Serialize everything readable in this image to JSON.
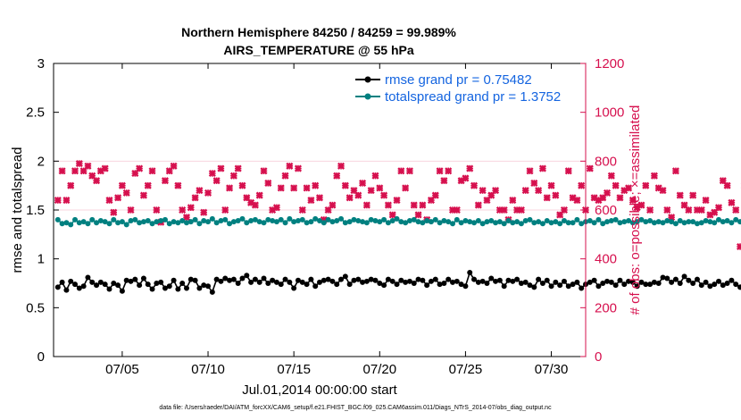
{
  "chart_data": {
    "type": "line",
    "title_line1": "Northern Hemisphere 84250 / 84259 = 99.989%",
    "title_line2": "AIRS_TEMPERATURE @ 55 hPa",
    "xlabel": "Jul.01,2014 00:00:00 start",
    "ylabel_left": "rmse and totalspread",
    "ylabel_right": "# of obs: o=possible; ×=assimilated",
    "xlim": [
      1.0,
      32.0
    ],
    "ylim_left": [
      0,
      3
    ],
    "ylim_right": [
      0,
      1200
    ],
    "x_ticks": [
      5,
      10,
      15,
      20,
      25,
      30
    ],
    "x_tick_labels": [
      "07/05",
      "07/10",
      "07/15",
      "07/20",
      "07/25",
      "07/30"
    ],
    "y_left_ticks": [
      0,
      0.5,
      1,
      1.5,
      2,
      2.5,
      3
    ],
    "y_left_tick_labels": [
      "0",
      "0.5",
      "1",
      "1.5",
      "2",
      "2.5",
      "3"
    ],
    "y_right_ticks": [
      0,
      200,
      400,
      600,
      800,
      1000,
      1200
    ],
    "y_right_tick_labels": [
      "0",
      "200",
      "400",
      "600",
      "800",
      "1000",
      "1200"
    ],
    "colors": {
      "rmse": "#000000",
      "spread": "#008080",
      "obs": "#d6104e",
      "axis_right": "#d6104e"
    },
    "legend": [
      {
        "name": "rmse grand pr = 0.75482",
        "color": "#000000"
      },
      {
        "name": "totalspread grand pr = 1.3752",
        "color": "#008080"
      }
    ],
    "x_start": 1.25,
    "x_step": 0.25,
    "series": [
      {
        "name": "rmse",
        "axis": "left",
        "values": [
          0.71,
          0.76,
          0.68,
          0.77,
          0.74,
          0.7,
          0.72,
          0.81,
          0.76,
          0.73,
          0.76,
          0.74,
          0.69,
          0.75,
          0.73,
          0.67,
          0.78,
          0.77,
          0.79,
          0.73,
          0.8,
          0.74,
          0.69,
          0.75,
          0.76,
          0.7,
          0.72,
          0.78,
          0.69,
          0.75,
          0.7,
          0.79,
          0.78,
          0.7,
          0.73,
          0.72,
          0.66,
          0.79,
          0.77,
          0.8,
          0.78,
          0.79,
          0.75,
          0.8,
          0.83,
          0.76,
          0.79,
          0.76,
          0.8,
          0.75,
          0.78,
          0.76,
          0.74,
          0.79,
          0.76,
          0.7,
          0.78,
          0.76,
          0.74,
          0.79,
          0.72,
          0.76,
          0.78,
          0.79,
          0.77,
          0.74,
          0.79,
          0.82,
          0.74,
          0.78,
          0.79,
          0.76,
          0.77,
          0.79,
          0.78,
          0.75,
          0.73,
          0.79,
          0.77,
          0.74,
          0.78,
          0.76,
          0.77,
          0.75,
          0.79,
          0.78,
          0.73,
          0.77,
          0.79,
          0.74,
          0.75,
          0.79,
          0.76,
          0.77,
          0.74,
          0.72,
          0.86,
          0.79,
          0.76,
          0.77,
          0.75,
          0.8,
          0.77,
          0.78,
          0.72,
          0.78,
          0.77,
          0.79,
          0.75,
          0.76,
          0.73,
          0.71,
          0.79,
          0.75,
          0.78,
          0.72,
          0.76,
          0.73,
          0.77,
          0.72,
          0.74,
          0.76,
          0.7,
          0.74,
          0.76,
          0.78,
          0.72,
          0.75,
          0.77,
          0.76,
          0.73,
          0.78,
          0.74,
          0.77,
          0.76,
          0.72,
          0.76,
          0.74,
          0.74,
          0.76,
          0.75,
          0.81,
          0.8,
          0.76,
          0.79,
          0.75,
          0.82,
          0.78,
          0.75,
          0.79,
          0.73,
          0.76,
          0.72,
          0.74,
          0.77,
          0.73,
          0.75,
          0.78,
          0.74,
          0.71,
          0.79,
          0.76,
          0.75,
          0.77,
          0.72,
          0.79,
          0.76,
          0.74,
          0.73,
          0.72,
          0.77,
          0.79,
          0.73,
          0.78,
          0.75,
          0.81,
          0.76,
          0.79,
          0.78,
          0.76,
          0.8,
          0.77,
          0.78,
          0.75,
          0.79,
          0.74,
          0.78,
          0.77,
          0.79,
          0.76,
          0.77,
          0.79,
          0.73,
          0.79,
          0.75,
          0.71,
          0.79,
          0.73,
          0.77,
          0.8,
          0.76,
          0.77,
          0.8,
          0.71,
          0.75,
          0.78,
          0.79,
          0.76,
          0.75,
          0.78,
          0.76,
          0.74,
          0.78,
          0.78,
          0.76,
          0.77,
          0.8,
          0.79,
          0.75,
          0.78,
          0.77,
          0.73,
          0.8,
          0.79,
          0.75,
          0.72,
          0.74,
          0.78,
          0.76,
          0.8,
          0.78,
          0.8,
          0.77,
          0.78,
          0.78,
          0.76,
          0.77,
          0.8,
          0.76,
          0.75,
          0.76,
          0.79,
          0.78,
          0.78,
          0.75,
          0.74,
          0.76,
          0.73
        ]
      },
      {
        "name": "totalspread",
        "axis": "left",
        "values": [
          1.4,
          1.36,
          1.37,
          1.35,
          1.4,
          1.37,
          1.38,
          1.36,
          1.4,
          1.37,
          1.39,
          1.38,
          1.36,
          1.4,
          1.37,
          1.38,
          1.35,
          1.39,
          1.4,
          1.37,
          1.38,
          1.39,
          1.36,
          1.38,
          1.39,
          1.4,
          1.36,
          1.38,
          1.37,
          1.39,
          1.37,
          1.38,
          1.4,
          1.36,
          1.39,
          1.38,
          1.41,
          1.37,
          1.39,
          1.4,
          1.36,
          1.38,
          1.39,
          1.41,
          1.37,
          1.39,
          1.4,
          1.38,
          1.37,
          1.4,
          1.39,
          1.38,
          1.4,
          1.37,
          1.41,
          1.38,
          1.39,
          1.4,
          1.37,
          1.38,
          1.41,
          1.39,
          1.37,
          1.4,
          1.38,
          1.39,
          1.41,
          1.37,
          1.38,
          1.4,
          1.39,
          1.38,
          1.37,
          1.4,
          1.39,
          1.38,
          1.4,
          1.37,
          1.39,
          1.41,
          1.38,
          1.37,
          1.39,
          1.4,
          1.38,
          1.37,
          1.39,
          1.38,
          1.4,
          1.37,
          1.39,
          1.38,
          1.36,
          1.4,
          1.37,
          1.39,
          1.38,
          1.37,
          1.39,
          1.36,
          1.38,
          1.39,
          1.37,
          1.38,
          1.36,
          1.39,
          1.37,
          1.38,
          1.36,
          1.39,
          1.4,
          1.37,
          1.38,
          1.36,
          1.39,
          1.37,
          1.38,
          1.36,
          1.39,
          1.37,
          1.37,
          1.4,
          1.36,
          1.38,
          1.39,
          1.37,
          1.4,
          1.36,
          1.38,
          1.39,
          1.4,
          1.37,
          1.38,
          1.39,
          1.37,
          1.38,
          1.4,
          1.38,
          1.39,
          1.37,
          1.38,
          1.37,
          1.39,
          1.38,
          1.36,
          1.39,
          1.37,
          1.38,
          1.38,
          1.36,
          1.37,
          1.39,
          1.38,
          1.37,
          1.4,
          1.38,
          1.39,
          1.37,
          1.4,
          1.38,
          1.37,
          1.39,
          1.36,
          1.37,
          1.39,
          1.38,
          1.37,
          1.39,
          1.36,
          1.38,
          1.39,
          1.37,
          1.36,
          1.38,
          1.37,
          1.39,
          1.36,
          1.38,
          1.37,
          1.39,
          1.36,
          1.37,
          1.38,
          1.36,
          1.39,
          1.38,
          1.37,
          1.36,
          1.34,
          1.36,
          1.35,
          1.37,
          1.36,
          1.38,
          1.39,
          1.36,
          1.38,
          1.37,
          1.39,
          1.36,
          1.38,
          1.37,
          1.36,
          1.39,
          1.37,
          1.38,
          1.36,
          1.38,
          1.37,
          1.39,
          1.35,
          1.36,
          1.34,
          1.36,
          1.35,
          1.37,
          1.34,
          1.36,
          1.35,
          1.36,
          1.34,
          1.36,
          1.37,
          1.35,
          1.34,
          1.36,
          1.35,
          1.37,
          1.36,
          1.34,
          1.36,
          1.35,
          1.37,
          1.35,
          1.36,
          1.38,
          1.36,
          1.37,
          1.35,
          1.37,
          1.38,
          1.36,
          1.37,
          1.39,
          1.37,
          1.38
        ]
      },
      {
        "name": "obs_assimilated",
        "axis": "right",
        "values": [
          640,
          760,
          640,
          700,
          760,
          790,
          760,
          780,
          740,
          720,
          760,
          770,
          640,
          590,
          650,
          700,
          670,
          600,
          750,
          770,
          660,
          700,
          760,
          600,
          550,
          720,
          760,
          780,
          700,
          600,
          570,
          610,
          650,
          680,
          590,
          670,
          750,
          720,
          770,
          600,
          690,
          740,
          770,
          700,
          650,
          630,
          620,
          660,
          760,
          710,
          600,
          610,
          690,
          740,
          780,
          690,
          770,
          600,
          690,
          640,
          700,
          650,
          560,
          600,
          620,
          740,
          780,
          700,
          650,
          680,
          660,
          710,
          620,
          680,
          740,
          690,
          660,
          620,
          580,
          640,
          760,
          690,
          760,
          620,
          580,
          620,
          560,
          640,
          660,
          760,
          720,
          760,
          600,
          600,
          720,
          730,
          770,
          700,
          620,
          680,
          640,
          660,
          680,
          600,
          600,
          560,
          640,
          600,
          600,
          680,
          760,
          710,
          680,
          770,
          650,
          700,
          660,
          580,
          600,
          760,
          650,
          640,
          700,
          600,
          770,
          650,
          640,
          650,
          670,
          740,
          700,
          650,
          680,
          690,
          640,
          610,
          620,
          700,
          600,
          740,
          690,
          680,
          600,
          570,
          760,
          660,
          620,
          600,
          660,
          600,
          600,
          640,
          580,
          590,
          610,
          720,
          700,
          630,
          600,
          450,
          700,
          600,
          610,
          600,
          660,
          660,
          660,
          640,
          580,
          710,
          740,
          680,
          640,
          590,
          600,
          720,
          690,
          750,
          660,
          640,
          620,
          580,
          670,
          740,
          760,
          660,
          640,
          600,
          620,
          690,
          740,
          580,
          600,
          660,
          700,
          770,
          700,
          640,
          590,
          640,
          610,
          600,
          600,
          580,
          680,
          700,
          720,
          640,
          660,
          660,
          660,
          600,
          680,
          700,
          720,
          760,
          660,
          680,
          700,
          760,
          600,
          700,
          640,
          620,
          690,
          620,
          620,
          760,
          640,
          660,
          760,
          590,
          590,
          660,
          720,
          760,
          700,
          590,
          600,
          700,
          760,
          740,
          0
        ]
      }
    ]
  },
  "footer": "data file: /Users/raeder/DAI/ATM_forcXX/CAM6_setup/f.e21.FHIST_BGC.f09_025.CAM6assim.011/Diags_NTrS_2014-07/obs_diag_output.nc"
}
